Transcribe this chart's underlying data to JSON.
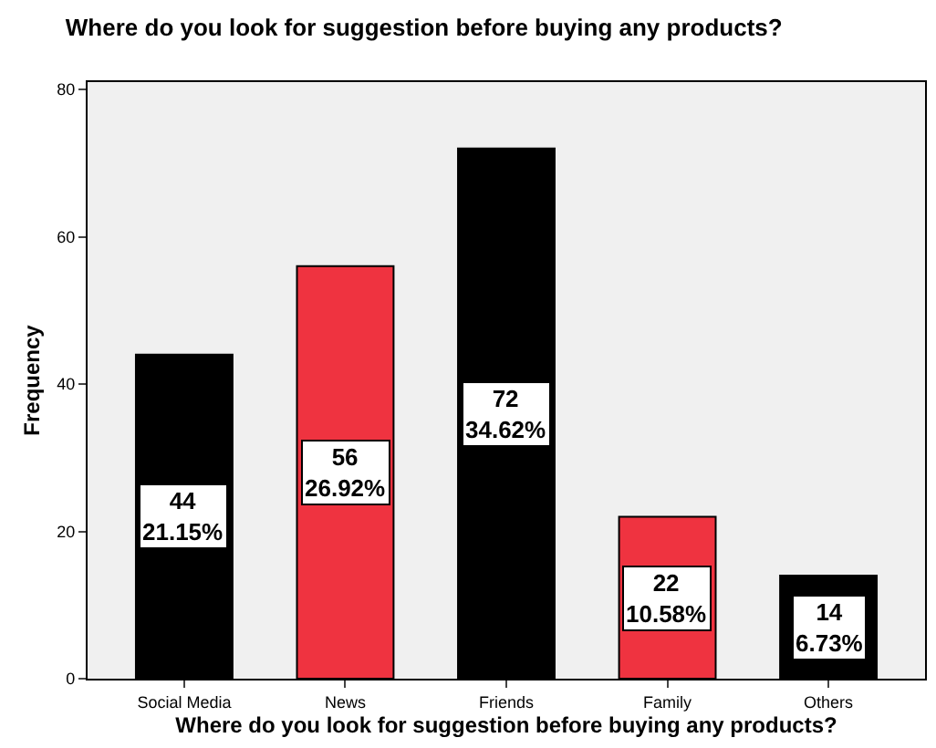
{
  "chart_data": {
    "type": "bar",
    "title": "Where do you look for suggestion before buying any products?",
    "xlabel": "Where do you look for suggestion before buying any products?",
    "ylabel": "Frequency",
    "categories": [
      "Social Media",
      "News",
      "Friends",
      "Family",
      "Others"
    ],
    "values": [
      44,
      56,
      72,
      22,
      14
    ],
    "colors": [
      "#000000",
      "#ef3340",
      "#000000",
      "#ef3340",
      "#000000"
    ],
    "value_labels": [
      "44\n21.15%",
      "56\n26.92%",
      "72\n34.62%",
      "22\n10.58%",
      "14\n6.73%"
    ],
    "ylim": [
      0,
      81
    ],
    "yticks": [
      0,
      20,
      40,
      60,
      80
    ],
    "grid": false,
    "legend": false
  }
}
